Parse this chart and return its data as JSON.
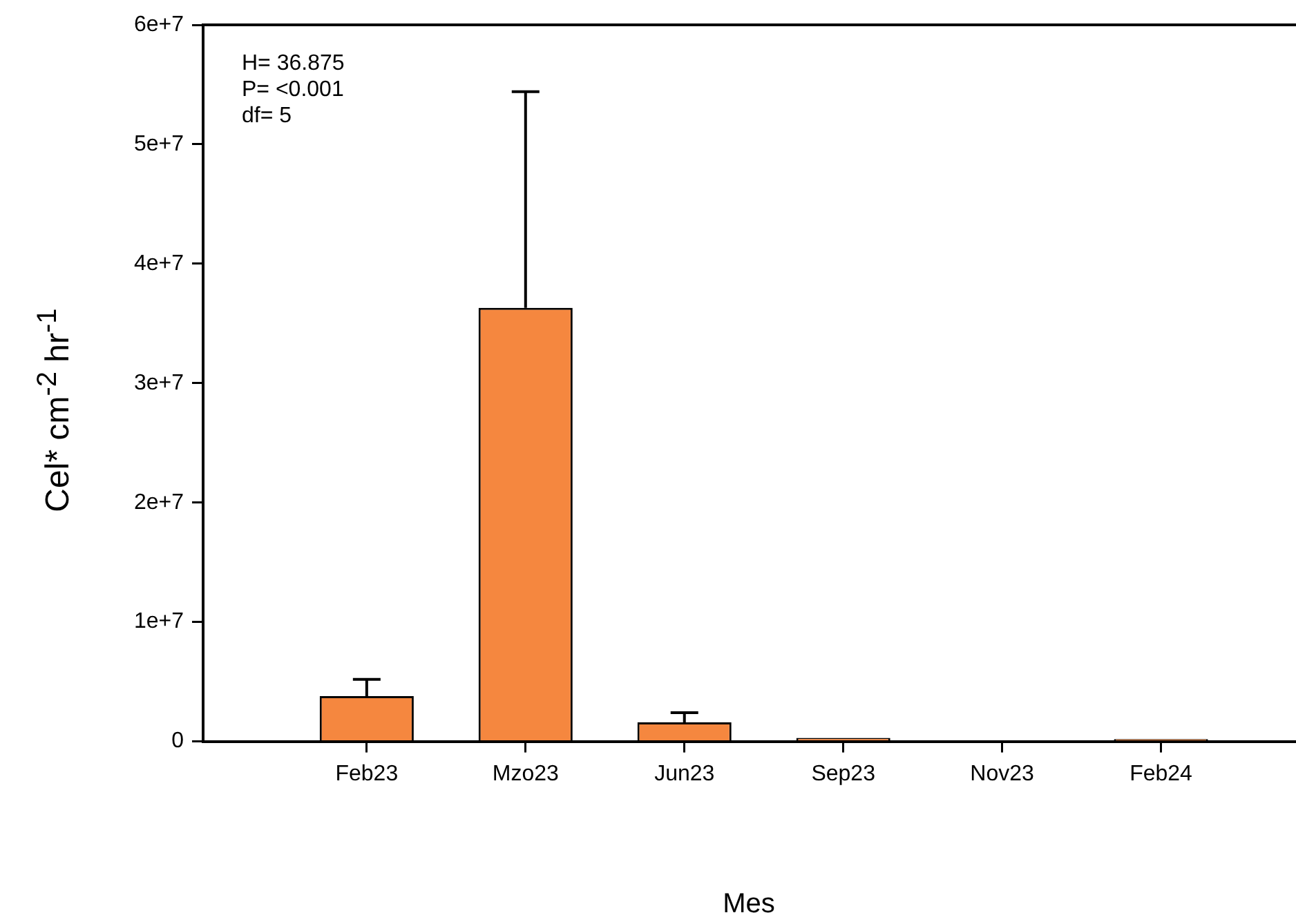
{
  "chart_data": {
    "type": "bar",
    "xlabel": "Mes",
    "ylabel": "Cel* cm$^{-2}$ hr$^{-1}$",
    "categories": [
      "Feb23",
      "Mzo23",
      "Jun23",
      "Sep23",
      "Nov23",
      "Feb24"
    ],
    "values": [
      3800000,
      36300000,
      1600000,
      300000,
      0,
      200000
    ],
    "errors": [
      [
        3800000,
        5200000
      ],
      [
        36300000,
        54400000
      ],
      [
        1600000,
        2400000
      ],
      null,
      null,
      null
    ],
    "color": "#f5873f",
    "ylim": [
      0,
      60000000
    ],
    "yticks": [
      {
        "value": 0,
        "label": "0"
      },
      {
        "value": 10000000,
        "label": "1e+7"
      },
      {
        "value": 20000000,
        "label": "2e+7"
      },
      {
        "value": 30000000,
        "label": "3e+7"
      },
      {
        "value": 40000000,
        "label": "4e+7"
      },
      {
        "value": 50000000,
        "label": "5e+7"
      },
      {
        "value": 60000000,
        "label": "6e+7"
      }
    ],
    "annotations": [
      "H= 36.875",
      "P= <0.001",
      "df= 5"
    ],
    "grid": false,
    "legend": false
  }
}
